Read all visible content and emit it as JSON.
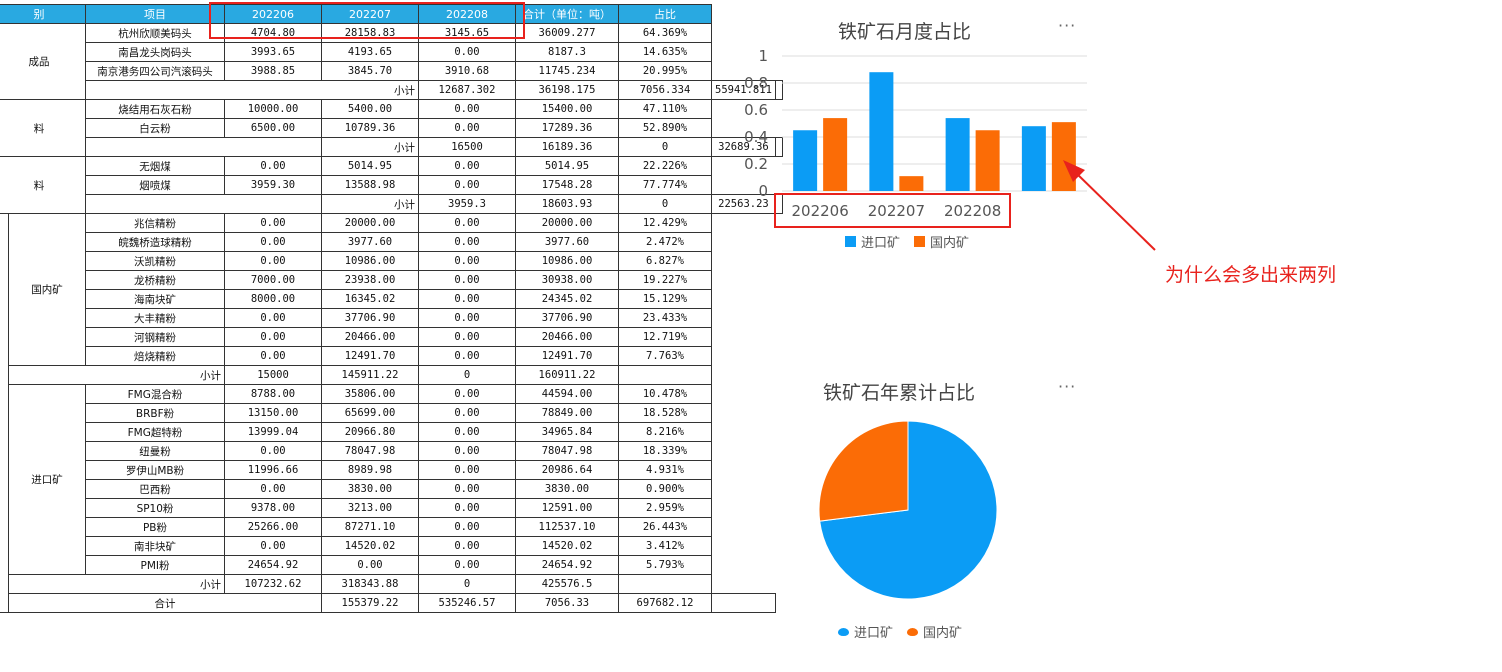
{
  "table": {
    "headers": [
      "别",
      "项目",
      "202206",
      "202207",
      "202208",
      "合计（单位：吨）",
      "占比"
    ],
    "rows": [
      {
        "g1": "成品",
        "g1span": 4,
        "item": "杭州欣顺美码头",
        "v": [
          "4704.80",
          "28158.83",
          "3145.65",
          "36009.277",
          "64.369%"
        ]
      },
      {
        "item": "南昌龙头岗码头",
        "v": [
          "3993.65",
          "4193.65",
          "0.00",
          "8187.3",
          "14.635%"
        ]
      },
      {
        "item": "南京港务四公司汽滚码头",
        "v": [
          "3988.85",
          "3845.70",
          "3910.68",
          "11745.234",
          "20.995%"
        ]
      },
      {
        "sub": "小计",
        "v": [
          "12687.302",
          "36198.175",
          "7056.334",
          "55941.811",
          ""
        ]
      },
      {
        "g1": "料",
        "g1span": 3,
        "item": "烧结用石灰石粉",
        "v": [
          "10000.00",
          "5400.00",
          "0.00",
          "15400.00",
          "47.110%"
        ]
      },
      {
        "item": "白云粉",
        "v": [
          "6500.00",
          "10789.36",
          "0.00",
          "17289.36",
          "52.890%"
        ]
      },
      {
        "sub2": "小计",
        "v": [
          "16500",
          "16189.36",
          "0",
          "32689.36",
          ""
        ]
      },
      {
        "g1": "料",
        "g1span": 3,
        "item": "无烟煤",
        "v": [
          "0.00",
          "5014.95",
          "0.00",
          "5014.95",
          "22.226%"
        ]
      },
      {
        "item": "烟喷煤",
        "v": [
          "3959.30",
          "13588.98",
          "0.00",
          "17548.28",
          "77.774%"
        ]
      },
      {
        "sub2": "小计",
        "v": [
          "3959.3",
          "18603.93",
          "0",
          "22563.23",
          ""
        ]
      },
      {
        "g1": "",
        "g1span": 21,
        "g2": "国内矿",
        "g2span": 8,
        "item": "兆信精粉",
        "v": [
          "0.00",
          "20000.00",
          "0.00",
          "20000.00",
          "12.429%"
        ]
      },
      {
        "item": "皖魏桥造球精粉",
        "v": [
          "0.00",
          "3977.60",
          "0.00",
          "3977.60",
          "2.472%"
        ]
      },
      {
        "item": "沃凯精粉",
        "v": [
          "0.00",
          "10986.00",
          "0.00",
          "10986.00",
          "6.827%"
        ]
      },
      {
        "item": "龙桥精粉",
        "v": [
          "7000.00",
          "23938.00",
          "0.00",
          "30938.00",
          "19.227%"
        ]
      },
      {
        "item": "海南块矿",
        "v": [
          "8000.00",
          "16345.02",
          "0.00",
          "24345.02",
          "15.129%"
        ]
      },
      {
        "item": "大丰精粉",
        "v": [
          "0.00",
          "37706.90",
          "0.00",
          "37706.90",
          "23.433%"
        ]
      },
      {
        "item": "河钢精粉",
        "v": [
          "0.00",
          "20466.00",
          "0.00",
          "20466.00",
          "12.719%"
        ]
      },
      {
        "item": "焙烧精粉",
        "v": [
          "0.00",
          "12491.70",
          "0.00",
          "12491.70",
          "7.763%"
        ]
      },
      {
        "sub3": "小计",
        "v": [
          "15000",
          "145911.22",
          "0",
          "160911.22",
          ""
        ]
      },
      {
        "g2": "进口矿",
        "g2span": 10,
        "item": "FMG混合粉",
        "v": [
          "8788.00",
          "35806.00",
          "0.00",
          "44594.00",
          "10.478%"
        ]
      },
      {
        "item": "BRBF粉",
        "v": [
          "13150.00",
          "65699.00",
          "0.00",
          "78849.00",
          "18.528%"
        ]
      },
      {
        "item": "FMG超特粉",
        "v": [
          "13999.04",
          "20966.80",
          "0.00",
          "34965.84",
          "8.216%"
        ]
      },
      {
        "item": "纽曼粉",
        "v": [
          "0.00",
          "78047.98",
          "0.00",
          "78047.98",
          "18.339%"
        ]
      },
      {
        "item": "罗伊山MB粉",
        "v": [
          "11996.66",
          "8989.98",
          "0.00",
          "20986.64",
          "4.931%"
        ]
      },
      {
        "item": "巴西粉",
        "v": [
          "0.00",
          "3830.00",
          "0.00",
          "3830.00",
          "0.900%"
        ]
      },
      {
        "item": "SP10粉",
        "v": [
          "9378.00",
          "3213.00",
          "0.00",
          "12591.00",
          "2.959%"
        ]
      },
      {
        "item": "PB粉",
        "v": [
          "25266.00",
          "87271.10",
          "0.00",
          "112537.10",
          "26.443%"
        ]
      },
      {
        "item": "南非块矿",
        "v": [
          "0.00",
          "14520.02",
          "0.00",
          "14520.02",
          "3.412%"
        ]
      },
      {
        "item": "PMI粉",
        "v": [
          "24654.92",
          "0.00",
          "0.00",
          "24654.92",
          "5.793%"
        ]
      },
      {
        "sub3": "小计",
        "v": [
          "107232.62",
          "318343.88",
          "0",
          "425576.5",
          ""
        ]
      },
      {
        "total": "合计",
        "v": [
          "155379.22",
          "535246.57",
          "7056.33",
          "697682.12",
          ""
        ]
      }
    ]
  },
  "bar_chart": {
    "title": "铁矿石月度占比",
    "more": "···",
    "colors": {
      "import": "#0b9cf5",
      "domestic": "#fb6c06"
    },
    "chart_data": {
      "type": "bar",
      "categories": [
        "202206",
        "202207",
        "202208",
        ""
      ],
      "series": [
        {
          "name": "进口矿",
          "values": [
            0.45,
            0.88,
            0.54,
            0.48
          ]
        },
        {
          "name": "国内矿",
          "values": [
            0.54,
            0.11,
            0.45,
            0.51
          ]
        }
      ],
      "ylim": [
        0,
        1
      ],
      "yticks": [
        "0",
        "0.2",
        "0.4",
        "0.6",
        "0.8",
        "1"
      ],
      "legend": "bottom-center"
    }
  },
  "pie_chart": {
    "title": "铁矿石年累计占比",
    "more": "···",
    "chart_data": {
      "type": "pie",
      "labels": [
        "进口矿",
        "国内矿"
      ],
      "values": [
        0.73,
        0.27
      ],
      "colors": [
        "#0b9cf5",
        "#fb6c06"
      ],
      "legend": "bottom-center"
    }
  },
  "annotation": {
    "text": "为什么会多出来两列",
    "color": "#e8221d"
  }
}
